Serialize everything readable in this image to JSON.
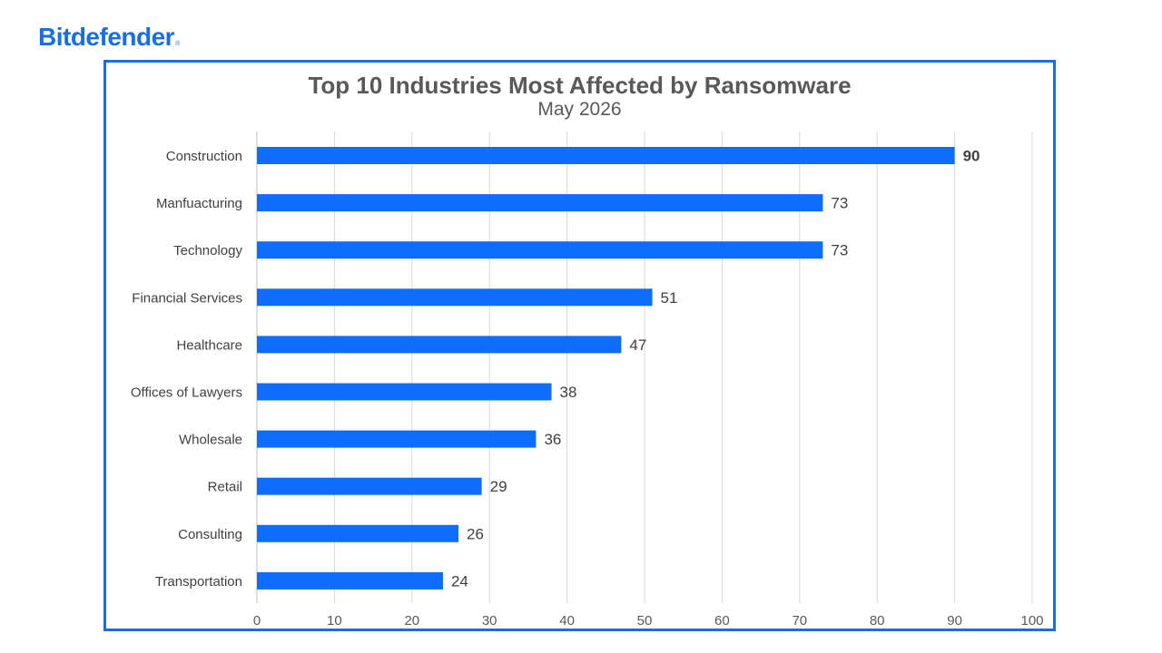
{
  "brand": {
    "name": "Bitdefender",
    "reg_mark": "®",
    "color": "#1a6fe0"
  },
  "chart_data": {
    "type": "bar",
    "orientation": "horizontal",
    "title": "Top 10 Industries Most Affected by Ransomware",
    "subtitle": "May 2026",
    "categories": [
      "Construction",
      "Manfuacturing",
      "Technology",
      "Financial Services",
      "Healthcare",
      "Offices of Lawyers",
      "Wholesale",
      "Retail",
      "Consulting",
      "Transportation"
    ],
    "values": [
      90,
      73,
      73,
      51,
      47,
      38,
      36,
      29,
      26,
      24
    ],
    "value_labels": [
      "90",
      "73",
      "73",
      "51",
      "47",
      "38",
      "36",
      "29",
      "26",
      "24"
    ],
    "bold_value_index": 0,
    "xlim": [
      0,
      100
    ],
    "x_ticks": [
      0,
      10,
      20,
      30,
      40,
      50,
      60,
      70,
      80,
      90,
      100
    ],
    "grid": true,
    "legend": "none",
    "bar_color": "#0d6efd",
    "frame_color": "#1a6fe0",
    "text_color": "#595959",
    "label_color": "#404040"
  }
}
